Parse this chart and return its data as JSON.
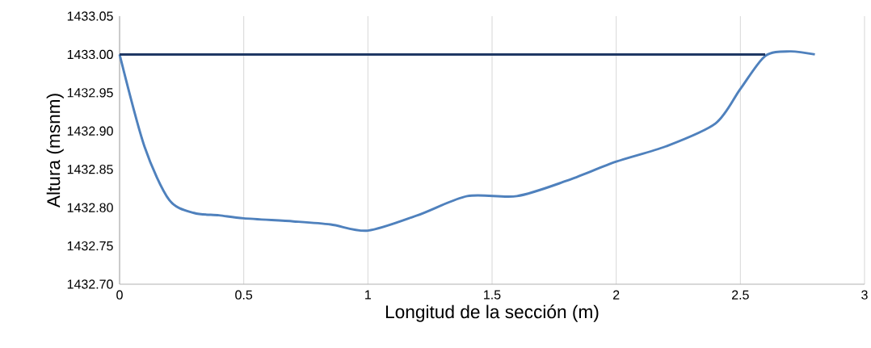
{
  "chart_data": {
    "type": "line",
    "xlabel": "Longitud de la sección (m)",
    "ylabel": "Altura (msnm)",
    "xlim": [
      0,
      3
    ],
    "xticks": [
      0,
      0.5,
      1,
      1.5,
      2,
      2.5,
      3
    ],
    "ylim": [
      1432.7,
      1433.05
    ],
    "yticks": [
      {
        "value": 1432.7,
        "label": "1432.70"
      },
      {
        "value": 1432.75,
        "label": "1432.75"
      },
      {
        "value": 1432.8,
        "label": "1432.80"
      },
      {
        "value": 1432.85,
        "label": "1432.85"
      },
      {
        "value": 1432.9,
        "label": "1432.90"
      },
      {
        "value": 1432.95,
        "label": "1432.95"
      },
      {
        "value": 1433.0,
        "label": "1433.00"
      },
      {
        "value": 1433.05,
        "label": "1433.05"
      }
    ],
    "grid": "x",
    "marker": "none",
    "line_style": "solid",
    "series": [
      {
        "color": "#4f81bd",
        "x": [
          0,
          0.1,
          0.2,
          0.3,
          0.4,
          0.5,
          0.7,
          0.85,
          1.0,
          1.2,
          1.4,
          1.6,
          1.8,
          2.0,
          2.2,
          2.4,
          2.5,
          2.6,
          2.7,
          2.8
        ],
        "values": [
          1433.0,
          1432.88,
          1432.81,
          1432.793,
          1432.79,
          1432.786,
          1432.782,
          1432.778,
          1432.77,
          1432.79,
          1432.815,
          1432.815,
          1432.835,
          1432.86,
          1432.88,
          1432.91,
          1432.955,
          1432.998,
          1433.004,
          1433.0
        ]
      },
      {
        "color": "#1f3864",
        "x": [
          0,
          2.6
        ],
        "values": [
          1433.0,
          1433.0
        ]
      }
    ]
  }
}
